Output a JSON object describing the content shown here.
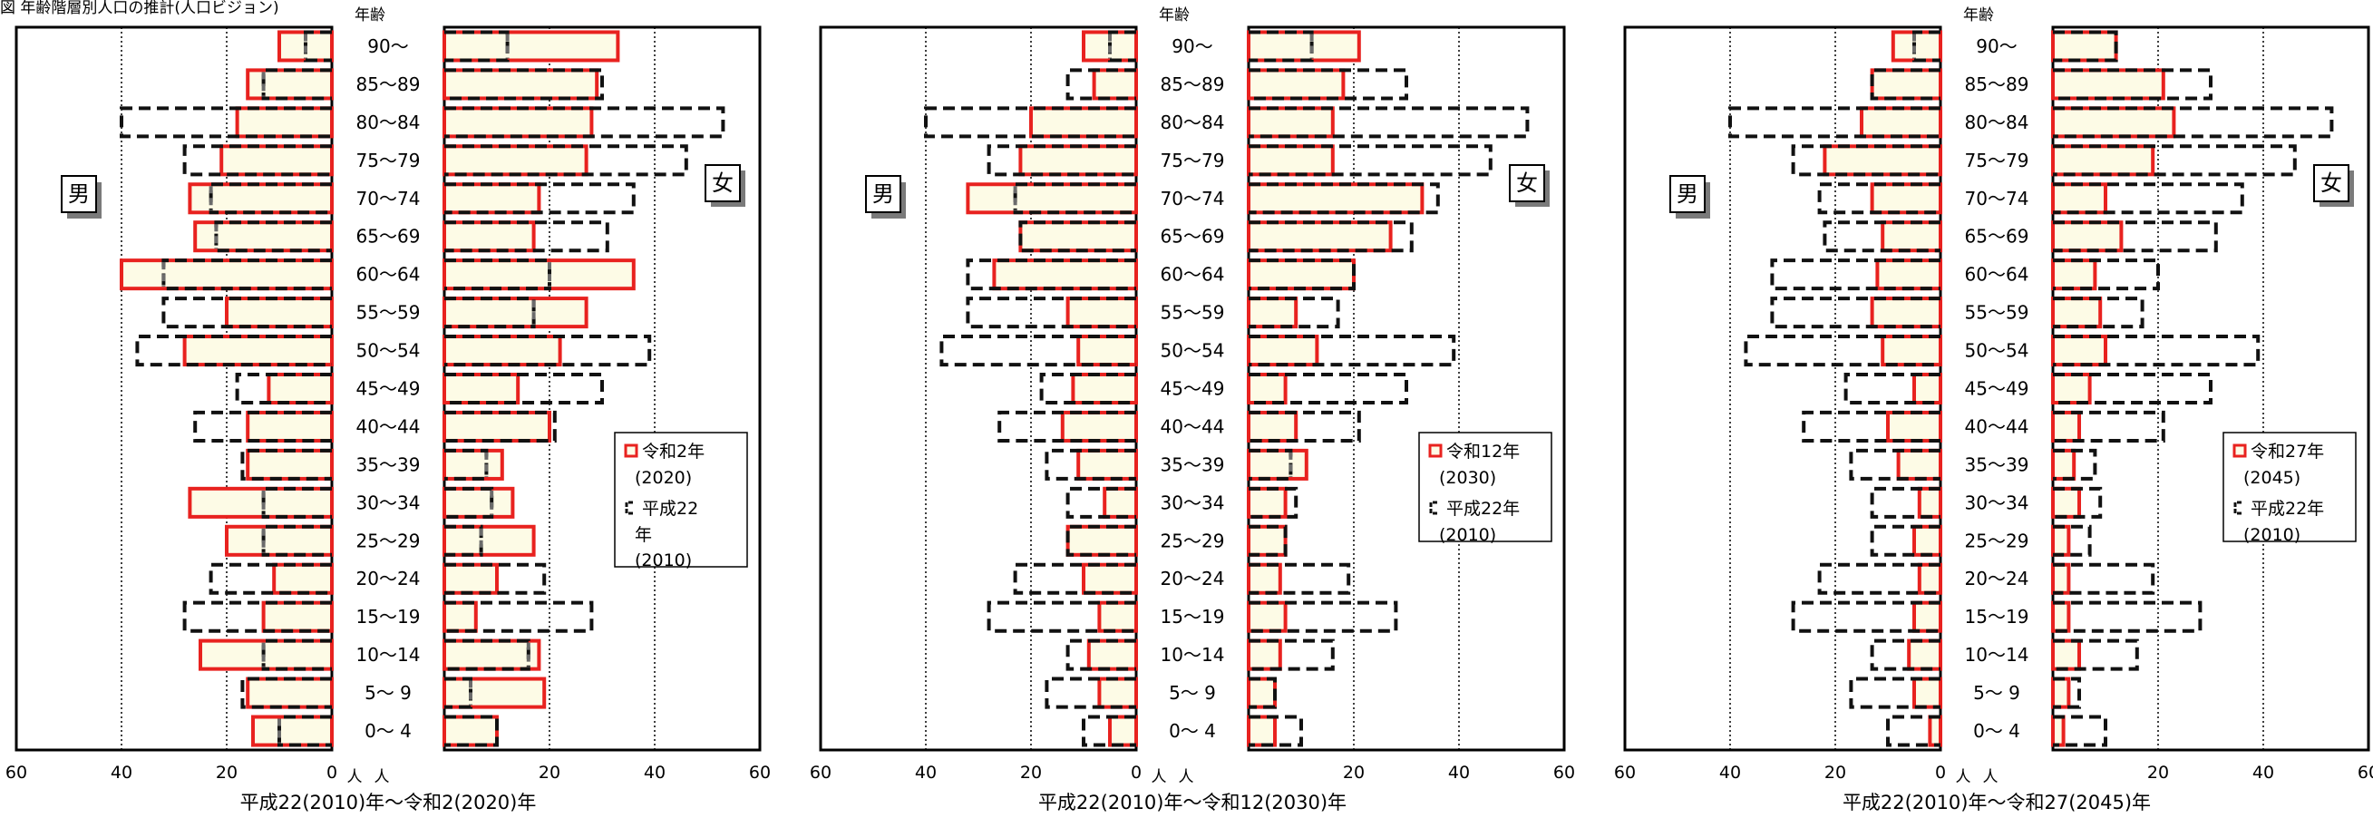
{
  "page_caption": "図 年齢階層別人口の推計(人口ビジョン)",
  "chart_data": [
    {
      "type": "bar",
      "subtype": "population-pyramid",
      "title": "",
      "xlabel": "平成22(2010)年〜令和2(2020)年",
      "ylabel": "年齢",
      "xlim": [
        0,
        60
      ],
      "x_ticks": [
        "60",
        "40",
        "20",
        "0",
        "20",
        "40",
        "60"
      ],
      "unit_label": "人",
      "male_label": "男",
      "female_label": "女",
      "categories": [
        "90〜",
        "85〜89",
        "80〜84",
        "75〜79",
        "70〜74",
        "65〜69",
        "60〜64",
        "55〜59",
        "50〜54",
        "45〜49",
        "40〜44",
        "35〜39",
        "30〜34",
        "25〜29",
        "20〜24",
        "15〜19",
        "10〜14",
        "5〜 9",
        "0〜 4"
      ],
      "series": [
        {
          "name": "令和2年(2020)",
          "male": [
            10,
            16,
            18,
            21,
            27,
            26,
            40,
            20,
            28,
            12,
            16,
            16,
            27,
            20,
            11,
            13,
            25,
            16,
            15
          ],
          "female": [
            33,
            29,
            28,
            27,
            18,
            17,
            36,
            27,
            22,
            14,
            20,
            11,
            13,
            17,
            10,
            6,
            18,
            19,
            10
          ]
        },
        {
          "name": "平成22年(2010)",
          "male": [
            5,
            13,
            40,
            28,
            23,
            22,
            32,
            32,
            37,
            18,
            26,
            17,
            13,
            13,
            23,
            28,
            13,
            17,
            10
          ],
          "female": [
            12,
            30,
            53,
            46,
            36,
            31,
            20,
            17,
            39,
            30,
            21,
            8,
            9,
            7,
            19,
            28,
            16,
            5,
            10
          ]
        }
      ],
      "legend": {
        "placement": "right",
        "current_line1": "令和2年",
        "current_line2": "(2020)",
        "base_line1": "平成22",
        "base_line2": "年",
        "base_line3": "(2010)"
      },
      "colors": {
        "current_edge": "#e8221f",
        "current_fill": "#fdfbe6",
        "base_edge": "#111111",
        "overlap_edge": "#6b6b6b"
      },
      "grid": true
    },
    {
      "type": "bar",
      "subtype": "population-pyramid",
      "title": "",
      "xlabel": "平成22(2010)年〜令和12(2030)年",
      "ylabel": "年齢",
      "xlim": [
        0,
        60
      ],
      "x_ticks": [
        "60",
        "40",
        "20",
        "0",
        "20",
        "40",
        "60"
      ],
      "unit_label": "人",
      "male_label": "男",
      "female_label": "女",
      "categories": [
        "90〜",
        "85〜89",
        "80〜84",
        "75〜79",
        "70〜74",
        "65〜69",
        "60〜64",
        "55〜59",
        "50〜54",
        "45〜49",
        "40〜44",
        "35〜39",
        "30〜34",
        "25〜29",
        "20〜24",
        "15〜19",
        "10〜14",
        "5〜 9",
        "0〜 4"
      ],
      "series": [
        {
          "name": "令和12年(2030)",
          "male": [
            10,
            8,
            20,
            22,
            32,
            22,
            27,
            13,
            11,
            12,
            14,
            11,
            6,
            13,
            10,
            7,
            9,
            7,
            5
          ],
          "female": [
            21,
            18,
            16,
            16,
            33,
            27,
            20,
            9,
            13,
            7,
            9,
            11,
            7,
            7,
            6,
            7,
            6,
            5,
            5
          ]
        },
        {
          "name": "平成22年(2010)",
          "male": [
            5,
            13,
            40,
            28,
            23,
            22,
            32,
            32,
            37,
            18,
            26,
            17,
            13,
            13,
            23,
            28,
            13,
            17,
            10
          ],
          "female": [
            12,
            30,
            53,
            46,
            36,
            31,
            20,
            17,
            39,
            30,
            21,
            8,
            9,
            7,
            19,
            28,
            16,
            5,
            10
          ]
        }
      ],
      "legend": {
        "placement": "right",
        "current_line1": "令和12年",
        "current_line2": "(2030)",
        "base_line1": "平成22年",
        "base_line2": "(2010)"
      },
      "colors": {
        "current_edge": "#e8221f",
        "current_fill": "#fdfbe6",
        "base_edge": "#111111",
        "overlap_edge": "#6b6b6b"
      },
      "grid": true
    },
    {
      "type": "bar",
      "subtype": "population-pyramid",
      "title": "",
      "xlabel": "平成22(2010)年〜令和27(2045)年",
      "ylabel": "年齢",
      "xlim": [
        0,
        60
      ],
      "x_ticks": [
        "60",
        "40",
        "20",
        "0",
        "20",
        "40",
        "60"
      ],
      "unit_label": "人",
      "male_label": "男",
      "female_label": "女",
      "categories": [
        "90〜",
        "85〜89",
        "80〜84",
        "75〜79",
        "70〜74",
        "65〜69",
        "60〜64",
        "55〜59",
        "50〜54",
        "45〜49",
        "40〜44",
        "35〜39",
        "30〜34",
        "25〜29",
        "20〜24",
        "15〜19",
        "10〜14",
        "5〜 9",
        "0〜 4"
      ],
      "series": [
        {
          "name": "令和27年(2045)",
          "male": [
            9,
            13,
            15,
            22,
            13,
            11,
            12,
            13,
            11,
            5,
            10,
            8,
            4,
            5,
            4,
            5,
            6,
            5,
            2
          ],
          "female": [
            12,
            21,
            23,
            19,
            10,
            13,
            8,
            9,
            10,
            7,
            5,
            4,
            5,
            3,
            3,
            3,
            5,
            3,
            2
          ]
        },
        {
          "name": "平成22年(2010)",
          "male": [
            5,
            13,
            40,
            28,
            23,
            22,
            32,
            32,
            37,
            18,
            26,
            17,
            13,
            13,
            23,
            28,
            13,
            17,
            10
          ],
          "female": [
            12,
            30,
            53,
            46,
            36,
            31,
            20,
            17,
            39,
            30,
            21,
            8,
            9,
            7,
            19,
            28,
            16,
            5,
            10
          ]
        }
      ],
      "legend": {
        "placement": "right",
        "current_line1": "令和27年",
        "current_line2": "(2045)",
        "base_line1": "平成22年",
        "base_line2": "(2010)"
      },
      "colors": {
        "current_edge": "#e8221f",
        "current_fill": "#fdfbe6",
        "base_edge": "#111111",
        "overlap_edge": "#6b6b6b"
      },
      "grid": true
    }
  ]
}
